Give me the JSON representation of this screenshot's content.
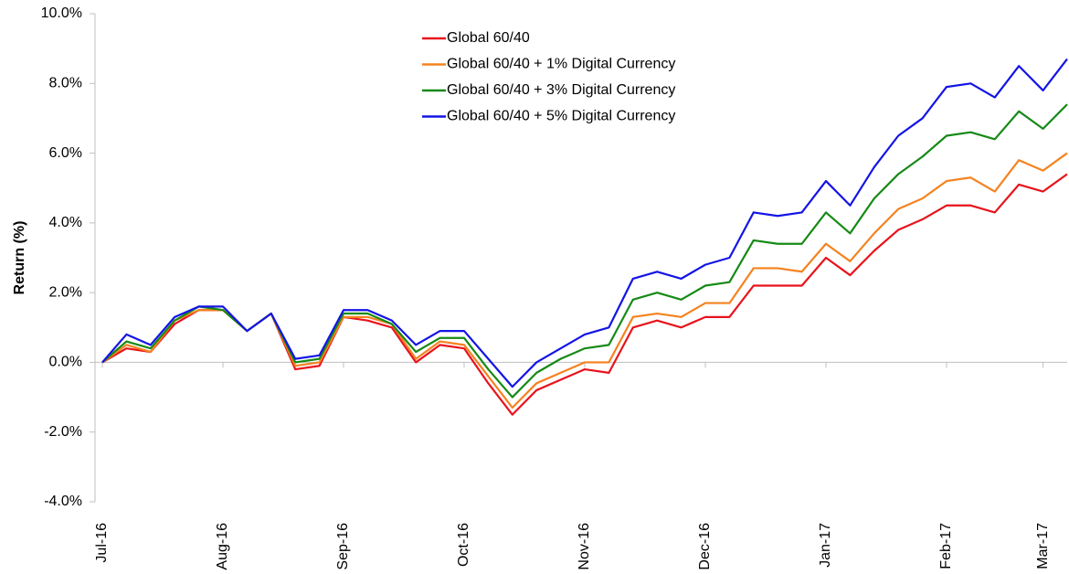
{
  "chart_data": {
    "type": "line",
    "y_label": "Return (%)",
    "categories": [
      "Jul-16",
      null,
      null,
      null,
      null,
      "Aug-16",
      null,
      null,
      null,
      null,
      "Sep-16",
      null,
      null,
      null,
      null,
      "Oct-16",
      null,
      null,
      null,
      null,
      "Nov-16",
      null,
      null,
      null,
      null,
      "Dec-16",
      null,
      null,
      null,
      null,
      "Jan-17",
      null,
      null,
      null,
      null,
      "Feb-17",
      null,
      null,
      null,
      "Mar-17",
      null
    ],
    "series": [
      {
        "name": "Global 60/40",
        "color": "#e8131c",
        "values": [
          0,
          0.4,
          0.3,
          1.1,
          1.5,
          1.5,
          0.9,
          1.4,
          -0.2,
          -0.1,
          1.3,
          1.2,
          1.0,
          0.0,
          0.5,
          0.4,
          -0.6,
          -1.5,
          -0.8,
          -0.5,
          -0.2,
          -0.3,
          1.0,
          1.2,
          1.0,
          1.3,
          1.3,
          2.2,
          2.2,
          2.2,
          3.0,
          2.5,
          3.2,
          3.8,
          4.1,
          4.5,
          4.5,
          4.3,
          5.1,
          4.9,
          5.4
        ]
      },
      {
        "name": "Global 60/40 + 1% Digital Currency",
        "color": "#f5821f",
        "values": [
          0,
          0.5,
          0.3,
          1.2,
          1.5,
          1.5,
          0.9,
          1.4,
          -0.1,
          0,
          1.3,
          1.3,
          1.1,
          0.1,
          0.6,
          0.5,
          -0.4,
          -1.3,
          -0.6,
          -0.3,
          0.0,
          0.0,
          1.3,
          1.4,
          1.3,
          1.7,
          1.7,
          2.7,
          2.7,
          2.6,
          3.4,
          2.9,
          3.7,
          4.4,
          4.7,
          5.2,
          5.3,
          4.9,
          5.8,
          5.5,
          6.0
        ]
      },
      {
        "name": "Global 60/40 + 3% Digital Currency",
        "color": "#168a16",
        "values": [
          0,
          0.6,
          0.4,
          1.2,
          1.6,
          1.5,
          0.9,
          1.4,
          0.0,
          0.1,
          1.4,
          1.4,
          1.1,
          0.3,
          0.7,
          0.7,
          -0.2,
          -1.0,
          -0.3,
          0.1,
          0.4,
          0.5,
          1.8,
          2.0,
          1.8,
          2.2,
          2.3,
          3.5,
          3.4,
          3.4,
          4.3,
          3.7,
          4.7,
          5.4,
          5.9,
          6.5,
          6.6,
          6.4,
          7.2,
          6.7,
          7.4
        ]
      },
      {
        "name": "Global 60/40 + 5% Digital Currency",
        "color": "#1414e6",
        "values": [
          0,
          0.8,
          0.5,
          1.3,
          1.6,
          1.6,
          0.9,
          1.4,
          0.1,
          0.2,
          1.5,
          1.5,
          1.2,
          0.5,
          0.9,
          0.9,
          0.1,
          -0.7,
          0.0,
          0.4,
          0.8,
          1.0,
          2.4,
          2.6,
          2.4,
          2.8,
          3.0,
          4.3,
          4.2,
          4.3,
          5.2,
          4.5,
          5.6,
          6.5,
          7.0,
          7.9,
          8.0,
          7.6,
          8.5,
          7.8,
          8.7
        ]
      }
    ],
    "ylim": [
      -4,
      10
    ],
    "yticks": [
      {
        "value": -4,
        "label": "-4.0%"
      },
      {
        "value": -2,
        "label": "-2.0%"
      },
      {
        "value": 0,
        "label": "0.0%"
      },
      {
        "value": 2,
        "label": "2.0%"
      },
      {
        "value": 4,
        "label": "4.0%"
      },
      {
        "value": 6,
        "label": "6.0%"
      },
      {
        "value": 8,
        "label": "8.0%"
      },
      {
        "value": 10,
        "label": "10.0%"
      }
    ],
    "legend": "top"
  }
}
